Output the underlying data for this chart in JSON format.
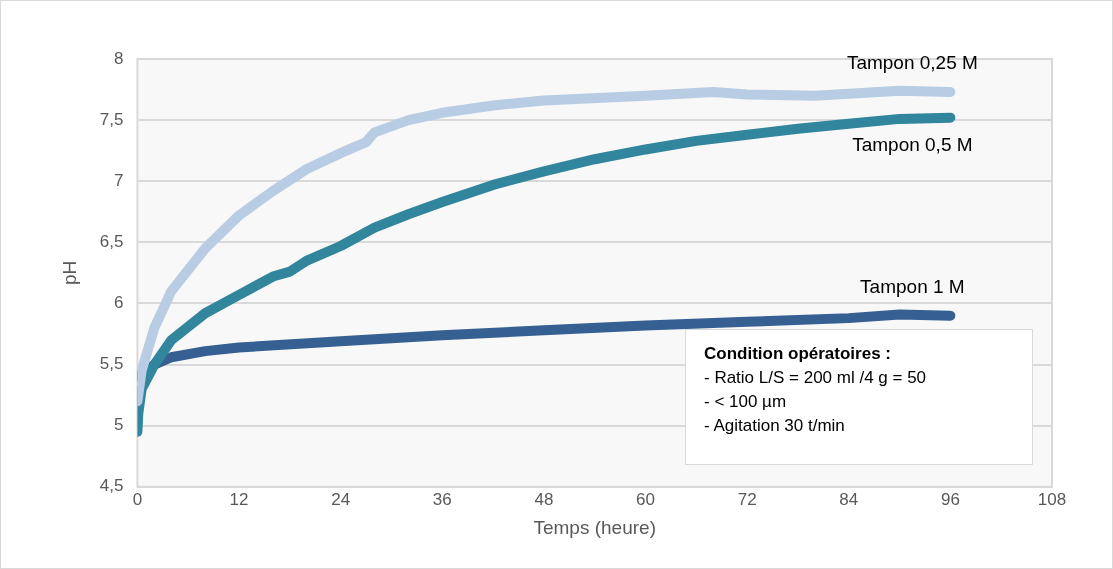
{
  "chart_data": {
    "type": "line",
    "xlabel": "Temps (heure)",
    "ylabel": "pH",
    "xlim": [
      0,
      108
    ],
    "xticks": [
      0,
      12,
      24,
      36,
      48,
      60,
      72,
      84,
      96,
      108
    ],
    "ylim": [
      4.5,
      8
    ],
    "yticks": [
      {
        "value": 4.5,
        "label": "4,5"
      },
      5,
      {
        "value": 5.5,
        "label": "5,5"
      },
      6,
      {
        "value": 6.5,
        "label": "6,5"
      },
      7,
      {
        "value": 7.5,
        "label": "7,5"
      },
      8
    ],
    "grid": "y",
    "legend": false,
    "series": [
      {
        "name": "Tampon 0,25 M",
        "color": "#b8cce4",
        "x": [
          0,
          0.5,
          2,
          4,
          8,
          12,
          16,
          20,
          24,
          27,
          28,
          32,
          36,
          42,
          48,
          60,
          68,
          72,
          80,
          90,
          96
        ],
        "values": [
          5.2,
          5.45,
          5.8,
          6.1,
          6.45,
          6.72,
          6.92,
          7.1,
          7.23,
          7.32,
          7.4,
          7.5,
          7.56,
          7.62,
          7.66,
          7.7,
          7.73,
          7.71,
          7.7,
          7.74,
          7.73
        ]
      },
      {
        "name": "Tampon 0,5 M",
        "color": "#31859c",
        "x": [
          0,
          0.1,
          0.5,
          2,
          4,
          8,
          12,
          16,
          18,
          20,
          24,
          28,
          32,
          36,
          42,
          48,
          54,
          60,
          66,
          72,
          78,
          84,
          90,
          96
        ],
        "values": [
          4.95,
          5.1,
          5.3,
          5.5,
          5.7,
          5.92,
          6.07,
          6.22,
          6.26,
          6.35,
          6.47,
          6.62,
          6.73,
          6.83,
          6.97,
          7.08,
          7.18,
          7.26,
          7.33,
          7.38,
          7.43,
          7.47,
          7.51,
          7.52
        ]
      },
      {
        "name": "Tampon 1 M",
        "color": "#376092",
        "x": [
          0,
          1,
          2,
          4,
          8,
          12,
          24,
          36,
          48,
          60,
          72,
          84,
          90,
          96
        ],
        "values": [
          5.4,
          5.45,
          5.5,
          5.56,
          5.61,
          5.64,
          5.69,
          5.74,
          5.78,
          5.82,
          5.85,
          5.88,
          5.91,
          5.9
        ]
      }
    ],
    "annotations": [
      "Condition opératoires :",
      "- Ratio L/S = 200 ml /4 g = 50",
      "- < 100 µm",
      "- Agitation 30 t/min"
    ]
  }
}
